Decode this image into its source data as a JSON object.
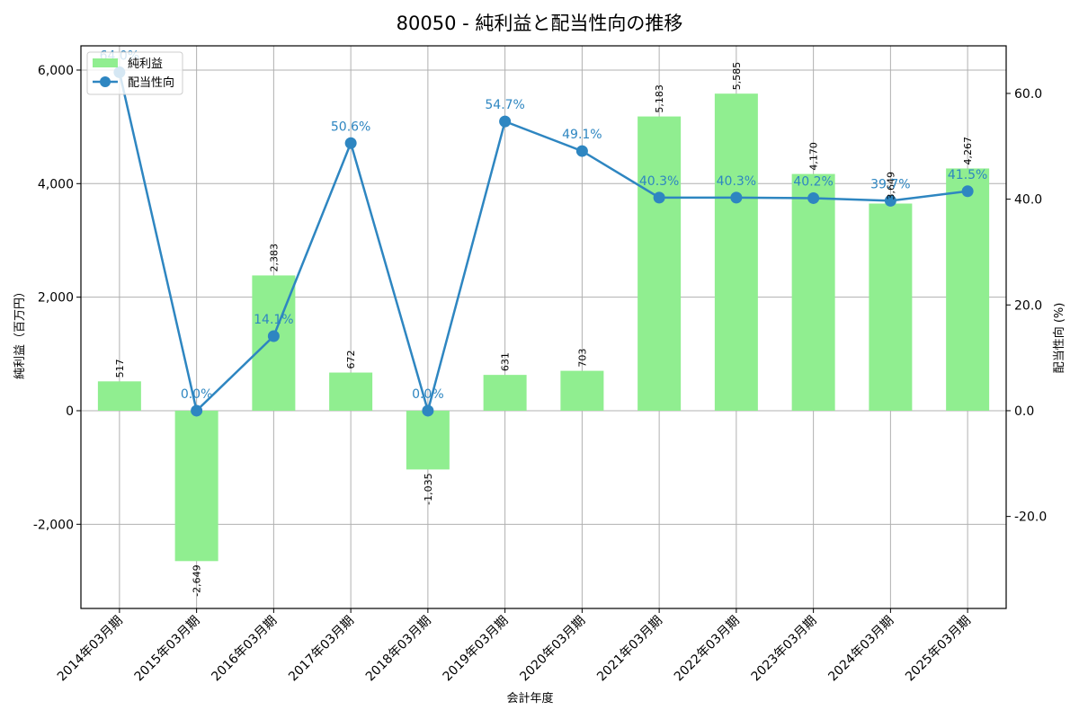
{
  "title": "80050 - 純利益と配当性向の推移",
  "chart_data": {
    "type": "bar+line",
    "title": "80050 - 純利益と配当性向の推移",
    "xlabel": "会計年度",
    "ylabel_left": "純利益（百万円）",
    "ylabel_right": "配当性向 (%)",
    "categories": [
      "2014年03月期",
      "2015年03月期",
      "2016年03月期",
      "2017年03月期",
      "2018年03月期",
      "2019年03月期",
      "2020年03月期",
      "2021年03月期",
      "2022年03月期",
      "2023年03月期",
      "2024年03月期",
      "2025年03月期"
    ],
    "series": [
      {
        "name": "純利益",
        "type": "bar",
        "axis": "left",
        "color": "#90ee90",
        "values": [
          517,
          -2649,
          2383,
          672,
          -1035,
          631,
          703,
          5183,
          5585,
          4170,
          3649,
          4267
        ],
        "labels": [
          "517",
          "-2,649",
          "2,383",
          "672",
          "-1,035",
          "631",
          "703",
          "5,183",
          "5,585",
          "4,170",
          "3,649",
          "4,267"
        ]
      },
      {
        "name": "配当性向",
        "type": "line",
        "axis": "right",
        "color": "#2e86c1",
        "values": [
          64.0,
          0.0,
          14.1,
          50.6,
          0.0,
          54.7,
          49.1,
          40.3,
          40.3,
          40.2,
          39.7,
          41.5
        ],
        "labels": [
          "64.0%",
          "0.0%",
          "14.1%",
          "50.6%",
          "0.0%",
          "54.7%",
          "49.1%",
          "40.3%",
          "40.3%",
          "40.2%",
          "39.7%",
          "41.5%"
        ]
      }
    ],
    "ylim_left": [
      -3483,
      6427
    ],
    "ylim_right": [
      -37.4,
      69.0
    ],
    "yticks_left": [
      -2000,
      0,
      2000,
      4000,
      6000
    ],
    "yticks_left_labels": [
      "-2,000",
      "0",
      "2,000",
      "4,000",
      "6,000"
    ],
    "yticks_right": [
      -20,
      0,
      20,
      40,
      60
    ],
    "yticks_right_labels": [
      "-20.0",
      "0.0",
      "20.0",
      "40.0",
      "60.0"
    ],
    "grid": true,
    "legend": {
      "position": "upper left",
      "entries": [
        "純利益",
        "配当性向"
      ]
    }
  }
}
